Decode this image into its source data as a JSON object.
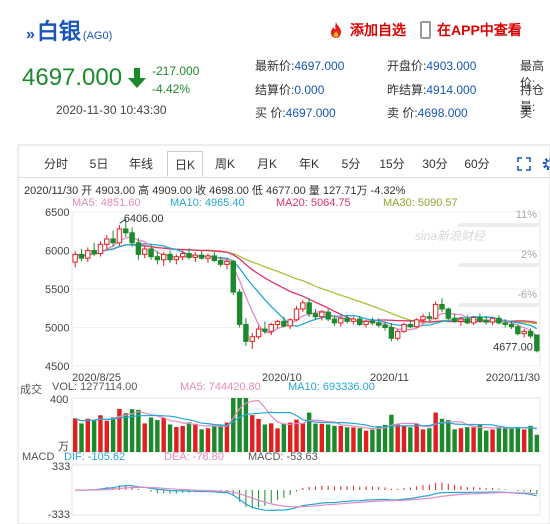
{
  "header": {
    "title": "白银",
    "code": "(AG0)",
    "add_fav": "添加自选",
    "app_view": "在APP中查看"
  },
  "price": {
    "last": "4697.000",
    "change": "-217.000",
    "change_pct": "-4.42%",
    "timestamp": "2020-11-30 10:43:30"
  },
  "quotes": [
    {
      "label": "最新价:",
      "value": "4697.000"
    },
    {
      "label": "开盘价:",
      "value": "4903.000"
    },
    {
      "label": "最高价:",
      "value": ""
    },
    {
      "label": "结算价:",
      "value": "0.000"
    },
    {
      "label": "昨结算:",
      "value": "4914.000"
    },
    {
      "label": "持仓量:",
      "value": ""
    },
    {
      "label": "买  价:",
      "value": "4697.000"
    },
    {
      "label": "卖  价:",
      "value": "4698.000"
    },
    {
      "label": "买",
      "value": ""
    }
  ],
  "tabs": [
    "分时",
    "5日",
    "年线",
    "日K",
    "周K",
    "月K",
    "年K",
    "5分",
    "15分",
    "30分",
    "60分"
  ],
  "active_tab": "日K",
  "info": "2020/11/30 开 4903.00 高 4909.00 收 4698.00 低 4677.00 量 127.71万 -4.32%",
  "ma": {
    "ma5": "MA5: 4851.60",
    "ma10": "MA10: 4965.40",
    "ma20": "MA20: 5064.75",
    "ma30": "MA30: 5090.57"
  },
  "vol": {
    "label": "成交",
    "vol": "VOL: 1277114.00",
    "ma5": "MA5: 744420.80",
    "ma10": "MA10: 693336.00"
  },
  "macd": {
    "label": "MACD",
    "dif": "DIF: -105.62",
    "dea": "DEA: -78.80",
    "macd": "MACD: -53.63"
  },
  "colors": {
    "up": "#e02020",
    "down": "#1b8a2d",
    "ma5": "#e48ac0",
    "ma10": "#23a8d8",
    "ma20": "#e0336a",
    "ma30": "#a8c23a",
    "blue": "#1a56b8"
  },
  "watermark": "sina新浪财经",
  "chart_data": {
    "type": "candlestick",
    "ylim": [
      4500,
      6500
    ],
    "y_ticks": [
      "6500",
      "6000",
      "5500",
      "5000",
      "4500"
    ],
    "pct_ticks": [
      "11%",
      "2%",
      "-6%"
    ],
    "x_labels": [
      "2020/8/25",
      "2020/10",
      "2020/11",
      "2020/11/30"
    ],
    "max_label": "6406.00",
    "min_label": "4677.00",
    "candles": [
      {
        "o": 5850,
        "h": 5990,
        "l": 5780,
        "c": 5950
      },
      {
        "o": 5950,
        "h": 6020,
        "l": 5860,
        "c": 5900
      },
      {
        "o": 5900,
        "h": 6040,
        "l": 5850,
        "c": 6000
      },
      {
        "o": 6000,
        "h": 6100,
        "l": 5930,
        "c": 5960
      },
      {
        "o": 5960,
        "h": 6120,
        "l": 5920,
        "c": 6080
      },
      {
        "o": 6080,
        "h": 6200,
        "l": 6010,
        "c": 6150
      },
      {
        "o": 6150,
        "h": 6260,
        "l": 6050,
        "c": 6100
      },
      {
        "o": 6100,
        "h": 6330,
        "l": 6060,
        "c": 6280
      },
      {
        "o": 6280,
        "h": 6406,
        "l": 6180,
        "c": 6230
      },
      {
        "o": 6230,
        "h": 6300,
        "l": 6050,
        "c": 6100
      },
      {
        "o": 6100,
        "h": 6160,
        "l": 5880,
        "c": 5950
      },
      {
        "o": 5950,
        "h": 6060,
        "l": 5900,
        "c": 6020
      },
      {
        "o": 6020,
        "h": 6080,
        "l": 5880,
        "c": 5920
      },
      {
        "o": 5920,
        "h": 5990,
        "l": 5820,
        "c": 5880
      },
      {
        "o": 5880,
        "h": 5980,
        "l": 5800,
        "c": 5950
      },
      {
        "o": 5950,
        "h": 6000,
        "l": 5840,
        "c": 5880
      },
      {
        "o": 5880,
        "h": 5950,
        "l": 5820,
        "c": 5920
      },
      {
        "o": 5920,
        "h": 6000,
        "l": 5870,
        "c": 5960
      },
      {
        "o": 5960,
        "h": 6030,
        "l": 5880,
        "c": 5910
      },
      {
        "o": 5910,
        "h": 5980,
        "l": 5850,
        "c": 5940
      },
      {
        "o": 5940,
        "h": 6000,
        "l": 5880,
        "c": 5900
      },
      {
        "o": 5900,
        "h": 5960,
        "l": 5840,
        "c": 5930
      },
      {
        "o": 5930,
        "h": 5980,
        "l": 5850,
        "c": 5870
      },
      {
        "o": 5870,
        "h": 5920,
        "l": 5790,
        "c": 5820
      },
      {
        "o": 5820,
        "h": 5900,
        "l": 5760,
        "c": 5860
      },
      {
        "o": 5860,
        "h": 5880,
        "l": 5420,
        "c": 5460
      },
      {
        "o": 5460,
        "h": 5500,
        "l": 5000,
        "c": 5040
      },
      {
        "o": 5040,
        "h": 5120,
        "l": 4760,
        "c": 4820
      },
      {
        "o": 4820,
        "h": 4930,
        "l": 4720,
        "c": 4880
      },
      {
        "o": 4880,
        "h": 5020,
        "l": 4850,
        "c": 4980
      },
      {
        "o": 4980,
        "h": 5080,
        "l": 4920,
        "c": 4950
      },
      {
        "o": 4950,
        "h": 5060,
        "l": 4900,
        "c": 5040
      },
      {
        "o": 5040,
        "h": 5100,
        "l": 4990,
        "c": 5080
      },
      {
        "o": 5080,
        "h": 5140,
        "l": 5000,
        "c": 5020
      },
      {
        "o": 5020,
        "h": 5120,
        "l": 4980,
        "c": 5100
      },
      {
        "o": 5100,
        "h": 5280,
        "l": 5080,
        "c": 5240
      },
      {
        "o": 5240,
        "h": 5360,
        "l": 5200,
        "c": 5320
      },
      {
        "o": 5320,
        "h": 5380,
        "l": 5140,
        "c": 5180
      },
      {
        "o": 5180,
        "h": 5240,
        "l": 5100,
        "c": 5140
      },
      {
        "o": 5140,
        "h": 5220,
        "l": 5090,
        "c": 5200
      },
      {
        "o": 5200,
        "h": 5240,
        "l": 5080,
        "c": 5110
      },
      {
        "o": 5110,
        "h": 5160,
        "l": 5020,
        "c": 5060
      },
      {
        "o": 5060,
        "h": 5140,
        "l": 5010,
        "c": 5120
      },
      {
        "o": 5120,
        "h": 5160,
        "l": 5050,
        "c": 5080
      },
      {
        "o": 5080,
        "h": 5140,
        "l": 5040,
        "c": 5110
      },
      {
        "o": 5110,
        "h": 5150,
        "l": 5020,
        "c": 5040
      },
      {
        "o": 5040,
        "h": 5100,
        "l": 5000,
        "c": 5080
      },
      {
        "o": 5080,
        "h": 5130,
        "l": 5030,
        "c": 5060
      },
      {
        "o": 5060,
        "h": 5120,
        "l": 5000,
        "c": 5030
      },
      {
        "o": 5030,
        "h": 5080,
        "l": 4960,
        "c": 5000
      },
      {
        "o": 5000,
        "h": 5060,
        "l": 4820,
        "c": 4860
      },
      {
        "o": 4860,
        "h": 4980,
        "l": 4830,
        "c": 4950
      },
      {
        "o": 4950,
        "h": 5060,
        "l": 4930,
        "c": 5040
      },
      {
        "o": 5040,
        "h": 5100,
        "l": 4990,
        "c": 5010
      },
      {
        "o": 5010,
        "h": 5120,
        "l": 4990,
        "c": 5100
      },
      {
        "o": 5100,
        "h": 5180,
        "l": 5060,
        "c": 5140
      },
      {
        "o": 5140,
        "h": 5200,
        "l": 5080,
        "c": 5120
      },
      {
        "o": 5120,
        "h": 5340,
        "l": 5100,
        "c": 5300
      },
      {
        "o": 5300,
        "h": 5380,
        "l": 5200,
        "c": 5240
      },
      {
        "o": 5240,
        "h": 5260,
        "l": 5100,
        "c": 5120
      },
      {
        "o": 5120,
        "h": 5180,
        "l": 5060,
        "c": 5080
      },
      {
        "o": 5080,
        "h": 5140,
        "l": 5020,
        "c": 5110
      },
      {
        "o": 5110,
        "h": 5160,
        "l": 5040,
        "c": 5060
      },
      {
        "o": 5060,
        "h": 5140,
        "l": 5030,
        "c": 5130
      },
      {
        "o": 5130,
        "h": 5180,
        "l": 5060,
        "c": 5090
      },
      {
        "o": 5090,
        "h": 5150,
        "l": 5040,
        "c": 5070
      },
      {
        "o": 5070,
        "h": 5140,
        "l": 5030,
        "c": 5120
      },
      {
        "o": 5120,
        "h": 5160,
        "l": 5040,
        "c": 5060
      },
      {
        "o": 5060,
        "h": 5110,
        "l": 5000,
        "c": 5040
      },
      {
        "o": 5040,
        "h": 5080,
        "l": 4980,
        "c": 5010
      },
      {
        "o": 5010,
        "h": 5040,
        "l": 4900,
        "c": 4920
      },
      {
        "o": 4920,
        "h": 4980,
        "l": 4870,
        "c": 4950
      },
      {
        "o": 4950,
        "h": 4990,
        "l": 4860,
        "c": 4890
      },
      {
        "o": 4903,
        "h": 4909,
        "l": 4677,
        "c": 4698
      }
    ],
    "volume": {
      "ylim": [
        0,
        400
      ],
      "y_ticks": [
        "400",
        "万"
      ]
    },
    "macd_panel": {
      "ylim": [
        -333,
        333
      ],
      "y_ticks": [
        "333",
        "-333"
      ]
    }
  }
}
